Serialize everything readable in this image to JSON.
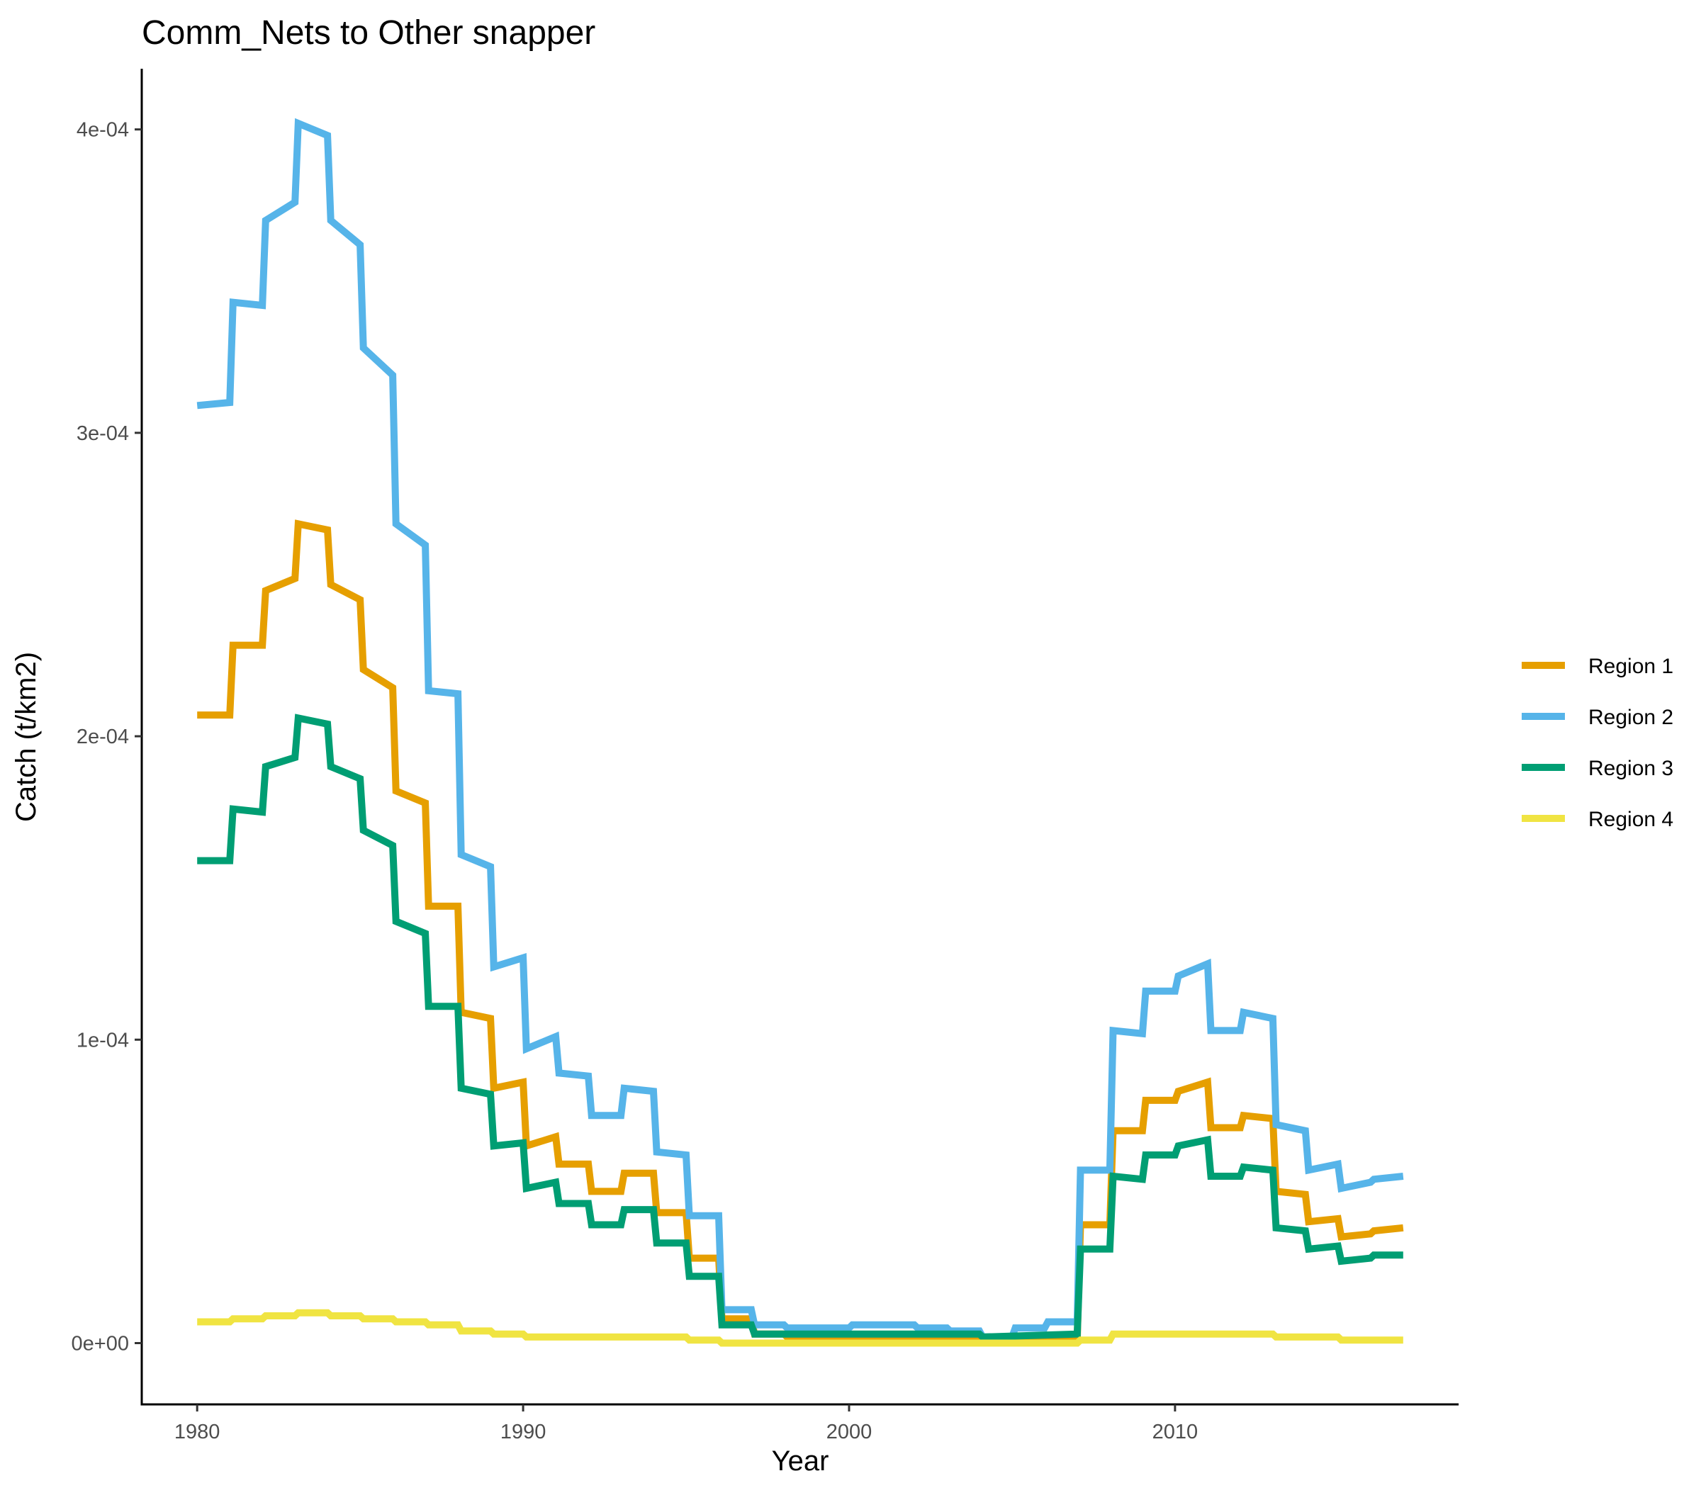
{
  "chart_data": {
    "type": "line",
    "title": "Comm_Nets to Other snapper",
    "xlabel": "Year",
    "ylabel": "Catch (t/km2)",
    "xlim": [
      1978.3,
      2018.7
    ],
    "ylim": [
      -2.02e-05,
      0.00042
    ],
    "x_ticks": [
      1980,
      1990,
      2000,
      2010
    ],
    "x_tick_labels": [
      "1980",
      "1990",
      "2000",
      "2010"
    ],
    "y_ticks": [
      0,
      0.0001,
      0.0002,
      0.0003,
      0.0004
    ],
    "y_tick_labels": [
      "0e+00",
      "1e-04",
      "2e-04",
      "3e-04",
      "4e-04"
    ],
    "legend_position": "right",
    "grid": false,
    "series": [
      {
        "name": "Region 1",
        "color": "#E69F00",
        "points": [
          [
            1980.0,
            0.000207
          ],
          [
            1981.0,
            0.000207
          ],
          [
            1981.1,
            0.00023
          ],
          [
            1982.0,
            0.00023
          ],
          [
            1982.1,
            0.000248
          ],
          [
            1983.0,
            0.000252
          ],
          [
            1983.1,
            0.00027
          ],
          [
            1984.0,
            0.000268
          ],
          [
            1984.1,
            0.00025
          ],
          [
            1985.0,
            0.000245
          ],
          [
            1985.1,
            0.000222
          ],
          [
            1986.0,
            0.000216
          ],
          [
            1986.1,
            0.000182
          ],
          [
            1987.0,
            0.000178
          ],
          [
            1987.1,
            0.000144
          ],
          [
            1988.0,
            0.000144
          ],
          [
            1988.1,
            0.000109
          ],
          [
            1989.0,
            0.000107
          ],
          [
            1989.1,
            8.4e-05
          ],
          [
            1990.0,
            8.6e-05
          ],
          [
            1990.1,
            6.5e-05
          ],
          [
            1991.0,
            6.8e-05
          ],
          [
            1991.1,
            5.9e-05
          ],
          [
            1992.0,
            5.9e-05
          ],
          [
            1992.1,
            5e-05
          ],
          [
            1993.0,
            5e-05
          ],
          [
            1993.1,
            5.6e-05
          ],
          [
            1994.0,
            5.6e-05
          ],
          [
            1994.1,
            4.3e-05
          ],
          [
            1995.0,
            4.3e-05
          ],
          [
            1995.1,
            2.8e-05
          ],
          [
            1996.0,
            2.8e-05
          ],
          [
            1996.1,
            8e-06
          ],
          [
            1997.0,
            8e-06
          ],
          [
            1997.1,
            3e-06
          ],
          [
            1998.0,
            3e-06
          ],
          [
            1998.1,
            2e-06
          ],
          [
            2004.0,
            2e-06
          ],
          [
            2004.1,
            1e-06
          ],
          [
            2007.0,
            1e-06
          ],
          [
            2007.1,
            3.9e-05
          ],
          [
            2008.0,
            3.9e-05
          ],
          [
            2008.1,
            7e-05
          ],
          [
            2009.0,
            7e-05
          ],
          [
            2009.1,
            8e-05
          ],
          [
            2010.0,
            8e-05
          ],
          [
            2010.1,
            8.3e-05
          ],
          [
            2011.0,
            8.6e-05
          ],
          [
            2011.1,
            7.1e-05
          ],
          [
            2012.0,
            7.1e-05
          ],
          [
            2012.1,
            7.5e-05
          ],
          [
            2013.0,
            7.4e-05
          ],
          [
            2013.1,
            5e-05
          ],
          [
            2014.0,
            4.9e-05
          ],
          [
            2014.1,
            4e-05
          ],
          [
            2015.0,
            4.1e-05
          ],
          [
            2015.1,
            3.5e-05
          ],
          [
            2016.0,
            3.6e-05
          ],
          [
            2016.1,
            3.7e-05
          ],
          [
            2017.0,
            3.8e-05
          ]
        ]
      },
      {
        "name": "Region 2",
        "color": "#56B4E9",
        "points": [
          [
            1980.0,
            0.000309
          ],
          [
            1981.0,
            0.00031
          ],
          [
            1981.1,
            0.000343
          ],
          [
            1982.0,
            0.000342
          ],
          [
            1982.1,
            0.00037
          ],
          [
            1983.0,
            0.000376
          ],
          [
            1983.1,
            0.000402
          ],
          [
            1984.0,
            0.000398
          ],
          [
            1984.1,
            0.00037
          ],
          [
            1985.0,
            0.000362
          ],
          [
            1985.1,
            0.000328
          ],
          [
            1986.0,
            0.000319
          ],
          [
            1986.1,
            0.00027
          ],
          [
            1987.0,
            0.000263
          ],
          [
            1987.1,
            0.000215
          ],
          [
            1988.0,
            0.000214
          ],
          [
            1988.1,
            0.000161
          ],
          [
            1989.0,
            0.000157
          ],
          [
            1989.1,
            0.000124
          ],
          [
            1990.0,
            0.000127
          ],
          [
            1990.1,
            9.7e-05
          ],
          [
            1991.0,
            0.000101
          ],
          [
            1991.1,
            8.9e-05
          ],
          [
            1992.0,
            8.8e-05
          ],
          [
            1992.1,
            7.5e-05
          ],
          [
            1993.0,
            7.5e-05
          ],
          [
            1993.1,
            8.4e-05
          ],
          [
            1994.0,
            8.3e-05
          ],
          [
            1994.1,
            6.3e-05
          ],
          [
            1995.0,
            6.2e-05
          ],
          [
            1995.1,
            4.2e-05
          ],
          [
            1996.0,
            4.2e-05
          ],
          [
            1996.1,
            1.1e-05
          ],
          [
            1997.0,
            1.1e-05
          ],
          [
            1997.1,
            6e-06
          ],
          [
            1998.0,
            6e-06
          ],
          [
            1998.1,
            5e-06
          ],
          [
            2000.0,
            5e-06
          ],
          [
            2000.1,
            6e-06
          ],
          [
            2002.0,
            6e-06
          ],
          [
            2002.1,
            5e-06
          ],
          [
            2003.0,
            5e-06
          ],
          [
            2003.1,
            4e-06
          ],
          [
            2004.0,
            4e-06
          ],
          [
            2004.1,
            2e-06
          ],
          [
            2005.0,
            2e-06
          ],
          [
            2005.1,
            5e-06
          ],
          [
            2006.0,
            5e-06
          ],
          [
            2006.1,
            7e-06
          ],
          [
            2007.0,
            7e-06
          ],
          [
            2007.1,
            5.7e-05
          ],
          [
            2008.0,
            5.7e-05
          ],
          [
            2008.1,
            0.000103
          ],
          [
            2009.0,
            0.000102
          ],
          [
            2009.1,
            0.000116
          ],
          [
            2010.0,
            0.000116
          ],
          [
            2010.1,
            0.000121
          ],
          [
            2011.0,
            0.000125
          ],
          [
            2011.1,
            0.000103
          ],
          [
            2012.0,
            0.000103
          ],
          [
            2012.1,
            0.000109
          ],
          [
            2013.0,
            0.000107
          ],
          [
            2013.1,
            7.2e-05
          ],
          [
            2014.0,
            7e-05
          ],
          [
            2014.1,
            5.7e-05
          ],
          [
            2015.0,
            5.9e-05
          ],
          [
            2015.1,
            5.1e-05
          ],
          [
            2016.0,
            5.3e-05
          ],
          [
            2016.1,
            5.4e-05
          ],
          [
            2017.0,
            5.5e-05
          ]
        ]
      },
      {
        "name": "Region 3",
        "color": "#009E73",
        "points": [
          [
            1980.0,
            0.000159
          ],
          [
            1981.0,
            0.000159
          ],
          [
            1981.1,
            0.000176
          ],
          [
            1982.0,
            0.000175
          ],
          [
            1982.1,
            0.00019
          ],
          [
            1983.0,
            0.000193
          ],
          [
            1983.1,
            0.000206
          ],
          [
            1984.0,
            0.000204
          ],
          [
            1984.1,
            0.00019
          ],
          [
            1985.0,
            0.000186
          ],
          [
            1985.1,
            0.000169
          ],
          [
            1986.0,
            0.000164
          ],
          [
            1986.1,
            0.000139
          ],
          [
            1987.0,
            0.000135
          ],
          [
            1987.1,
            0.000111
          ],
          [
            1988.0,
            0.000111
          ],
          [
            1988.1,
            8.4e-05
          ],
          [
            1989.0,
            8.2e-05
          ],
          [
            1989.1,
            6.5e-05
          ],
          [
            1990.0,
            6.6e-05
          ],
          [
            1990.1,
            5.1e-05
          ],
          [
            1991.0,
            5.3e-05
          ],
          [
            1991.1,
            4.6e-05
          ],
          [
            1992.0,
            4.6e-05
          ],
          [
            1992.1,
            3.9e-05
          ],
          [
            1993.0,
            3.9e-05
          ],
          [
            1993.1,
            4.4e-05
          ],
          [
            1994.0,
            4.4e-05
          ],
          [
            1994.1,
            3.3e-05
          ],
          [
            1995.0,
            3.3e-05
          ],
          [
            1995.1,
            2.2e-05
          ],
          [
            1996.0,
            2.2e-05
          ],
          [
            1996.1,
            6e-06
          ],
          [
            1997.0,
            6e-06
          ],
          [
            1997.1,
            3e-06
          ],
          [
            2000.0,
            3e-06
          ],
          [
            2000.1,
            3e-06
          ],
          [
            2004.0,
            3e-06
          ],
          [
            2004.1,
            2e-06
          ],
          [
            2007.0,
            3e-06
          ],
          [
            2007.1,
            3.1e-05
          ],
          [
            2008.0,
            3.1e-05
          ],
          [
            2008.1,
            5.5e-05
          ],
          [
            2009.0,
            5.4e-05
          ],
          [
            2009.1,
            6.2e-05
          ],
          [
            2010.0,
            6.2e-05
          ],
          [
            2010.1,
            6.5e-05
          ],
          [
            2011.0,
            6.7e-05
          ],
          [
            2011.1,
            5.5e-05
          ],
          [
            2012.0,
            5.5e-05
          ],
          [
            2012.1,
            5.8e-05
          ],
          [
            2013.0,
            5.7e-05
          ],
          [
            2013.1,
            3.8e-05
          ],
          [
            2014.0,
            3.7e-05
          ],
          [
            2014.1,
            3.1e-05
          ],
          [
            2015.0,
            3.2e-05
          ],
          [
            2015.1,
            2.7e-05
          ],
          [
            2016.0,
            2.8e-05
          ],
          [
            2016.1,
            2.9e-05
          ],
          [
            2017.0,
            2.9e-05
          ]
        ]
      },
      {
        "name": "Region 4",
        "color": "#F0E442",
        "points": [
          [
            1980.0,
            7e-06
          ],
          [
            1981.0,
            7e-06
          ],
          [
            1981.1,
            8e-06
          ],
          [
            1982.0,
            8e-06
          ],
          [
            1982.1,
            9e-06
          ],
          [
            1983.0,
            9e-06
          ],
          [
            1983.1,
            1e-05
          ],
          [
            1984.0,
            1e-05
          ],
          [
            1984.1,
            9e-06
          ],
          [
            1985.0,
            9e-06
          ],
          [
            1985.1,
            8e-06
          ],
          [
            1986.0,
            8e-06
          ],
          [
            1986.1,
            7e-06
          ],
          [
            1987.0,
            7e-06
          ],
          [
            1987.1,
            6e-06
          ],
          [
            1988.0,
            6e-06
          ],
          [
            1988.1,
            4e-06
          ],
          [
            1989.0,
            4e-06
          ],
          [
            1989.1,
            3e-06
          ],
          [
            1990.0,
            3e-06
          ],
          [
            1990.1,
            2e-06
          ],
          [
            1995.0,
            2e-06
          ],
          [
            1995.1,
            1e-06
          ],
          [
            1996.0,
            1e-06
          ],
          [
            1996.1,
            0.0
          ],
          [
            2007.0,
            0.0
          ],
          [
            2007.1,
            1e-06
          ],
          [
            2008.0,
            1e-06
          ],
          [
            2008.1,
            3e-06
          ],
          [
            2009.0,
            3e-06
          ],
          [
            2009.1,
            3e-06
          ],
          [
            2012.0,
            3e-06
          ],
          [
            2012.1,
            3e-06
          ],
          [
            2013.0,
            3e-06
          ],
          [
            2013.1,
            2e-06
          ],
          [
            2015.0,
            2e-06
          ],
          [
            2015.1,
            1e-06
          ],
          [
            2017.0,
            1e-06
          ]
        ]
      }
    ]
  }
}
